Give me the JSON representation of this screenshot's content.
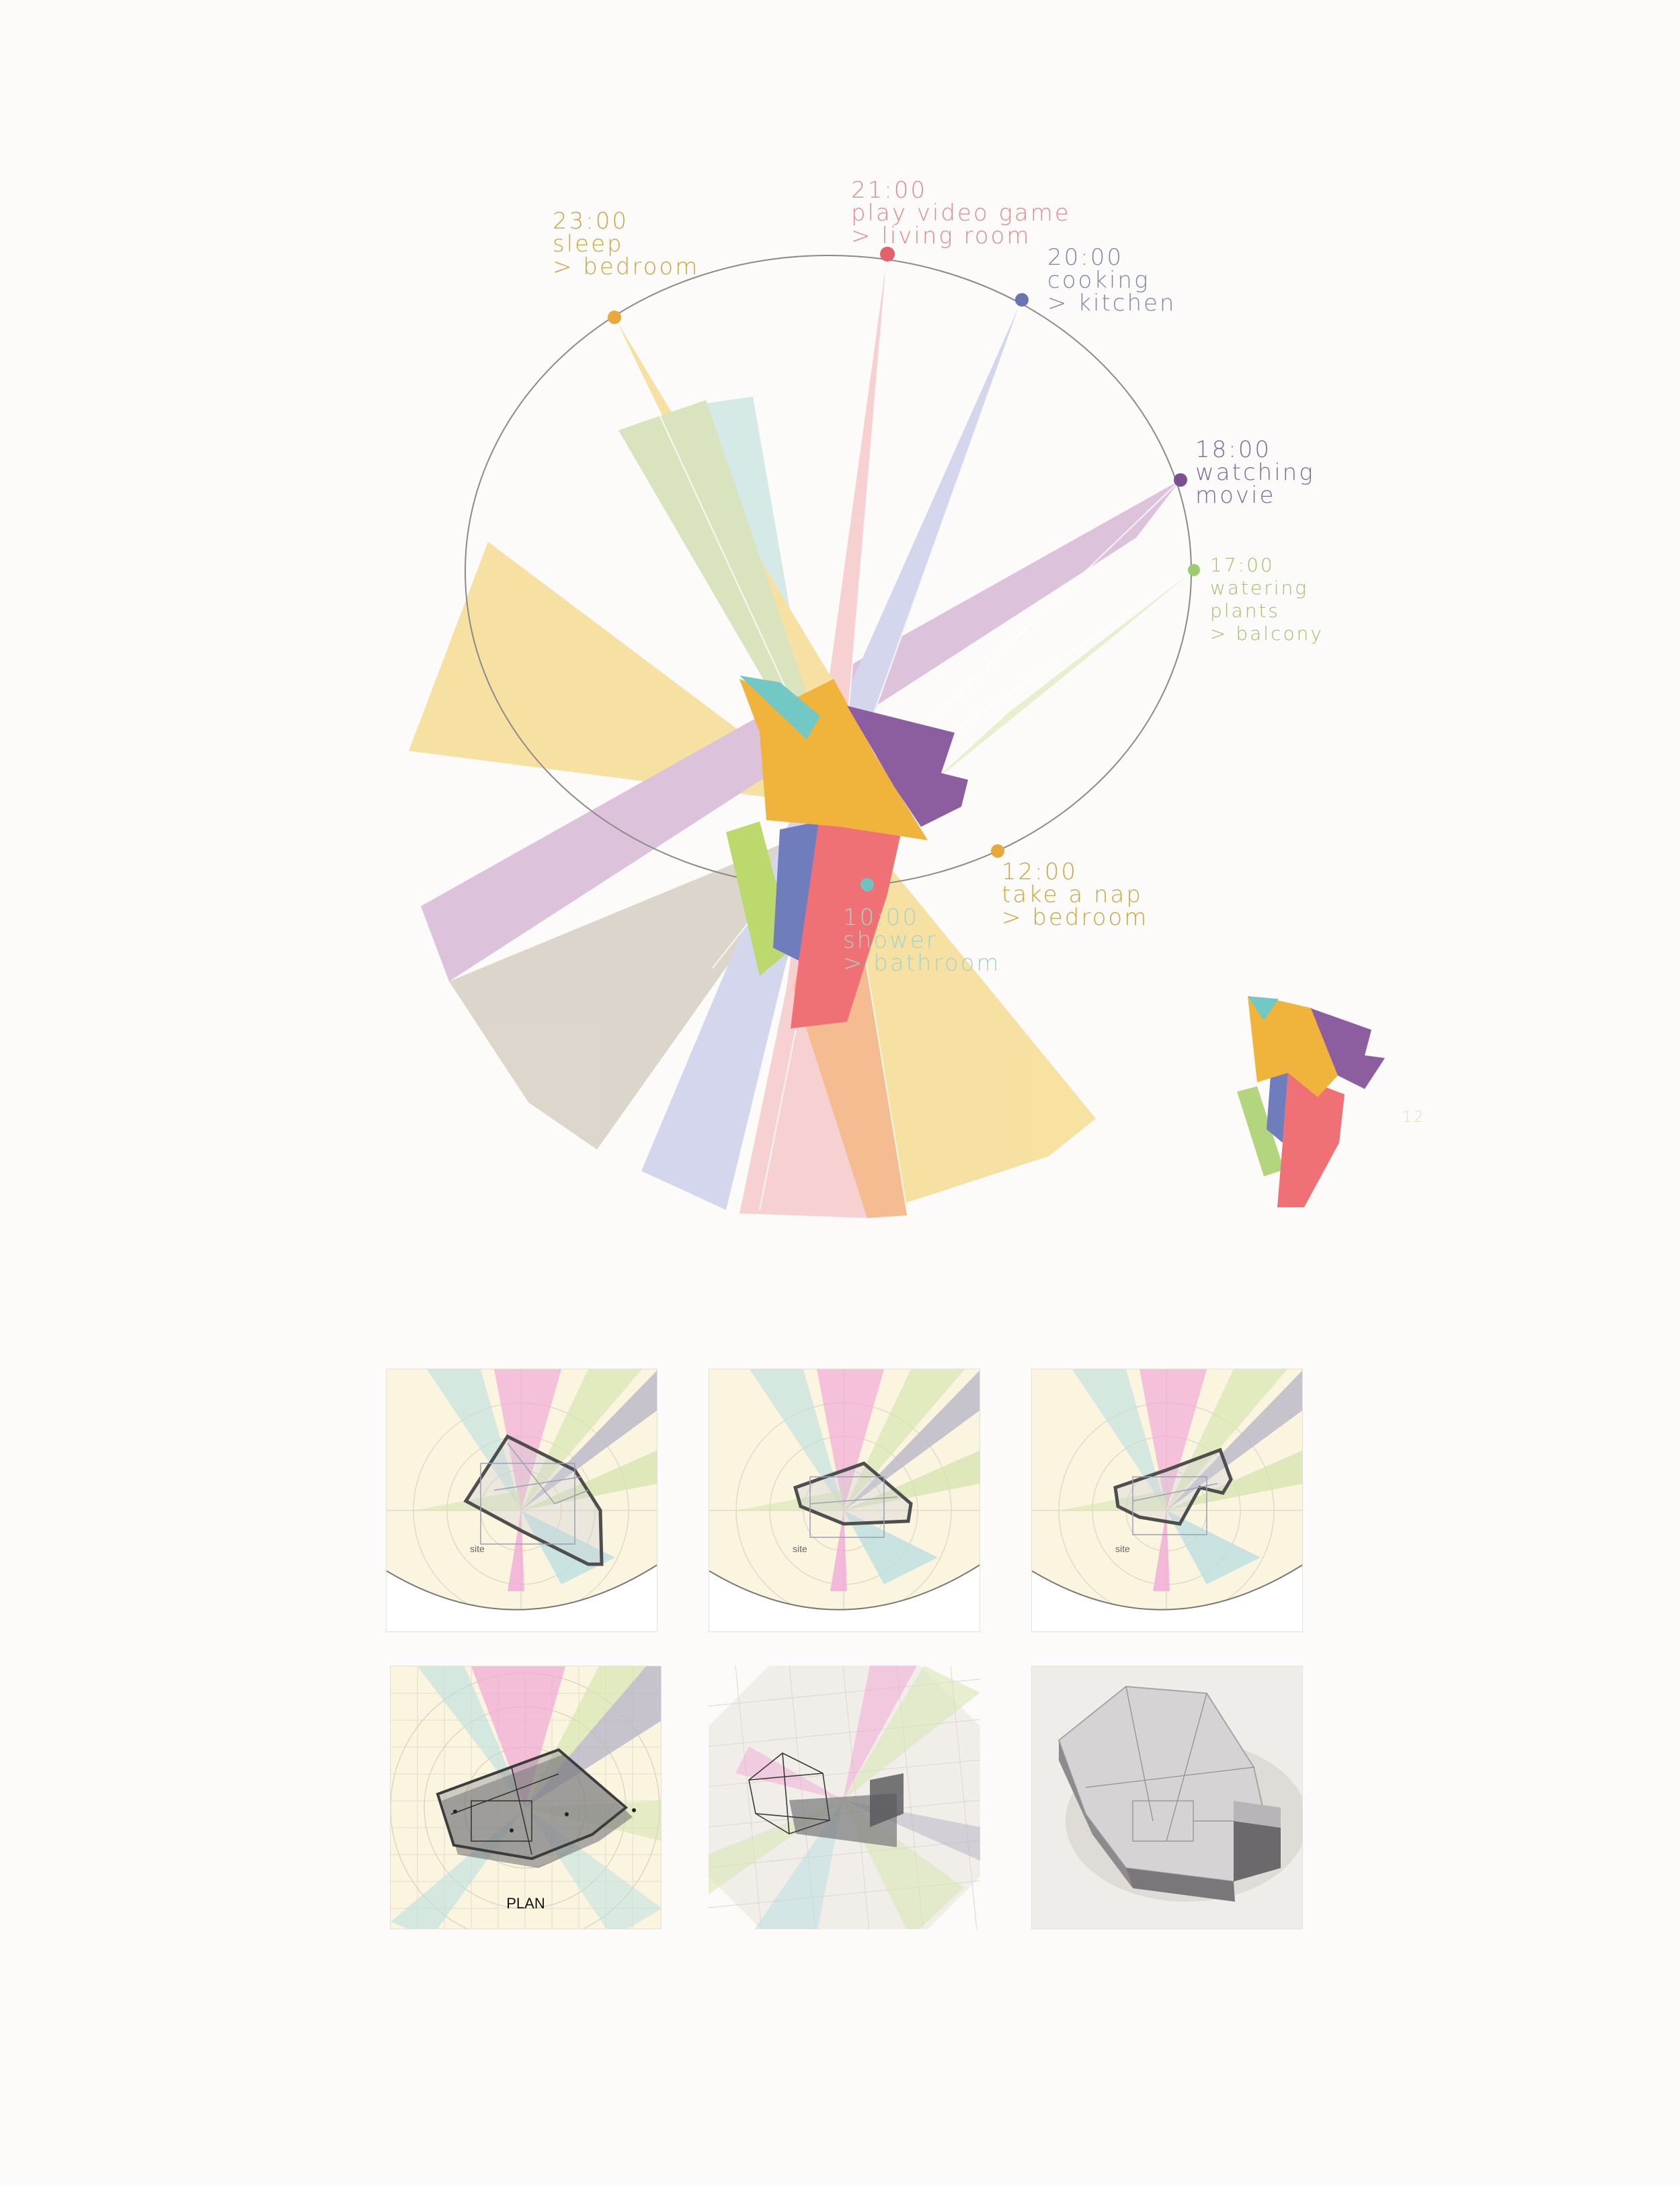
{
  "activities": [
    {
      "time": "23:00",
      "activity": "sleep",
      "room": "> bedroom",
      "color": "#c9a63e",
      "dot": "#e8a93a"
    },
    {
      "time": "21:00",
      "activity": "play video game",
      "room": "> living room",
      "color": "#e08a8a",
      "dot": "#e5606a"
    },
    {
      "time": "20:00",
      "activity": "cooking",
      "room": "> kitchen",
      "color": "#7f86a8",
      "dot": "#6874b3"
    },
    {
      "time": "18:00",
      "activity": "watching",
      "room": "movie",
      "color": "#7d6a9a",
      "dot": "#7b4f94"
    },
    {
      "time": "17:00",
      "activity": "watering",
      "room": "plants",
      "extra": "> balcony",
      "color": "#9fbf6a",
      "dot": "#9ccc6d"
    },
    {
      "time": "12:00",
      "activity": "take a nap",
      "room": "> bedroom",
      "color": "#c9a63e",
      "dot": "#e8a93a"
    },
    {
      "time": "10:00",
      "activity": "shower",
      "room": "> bathroom",
      "color": "#a4d3cc",
      "dot": "#6fc2bd"
    }
  ],
  "small_shape_note": "12",
  "site_label": "site",
  "plan_label": "PLAN"
}
